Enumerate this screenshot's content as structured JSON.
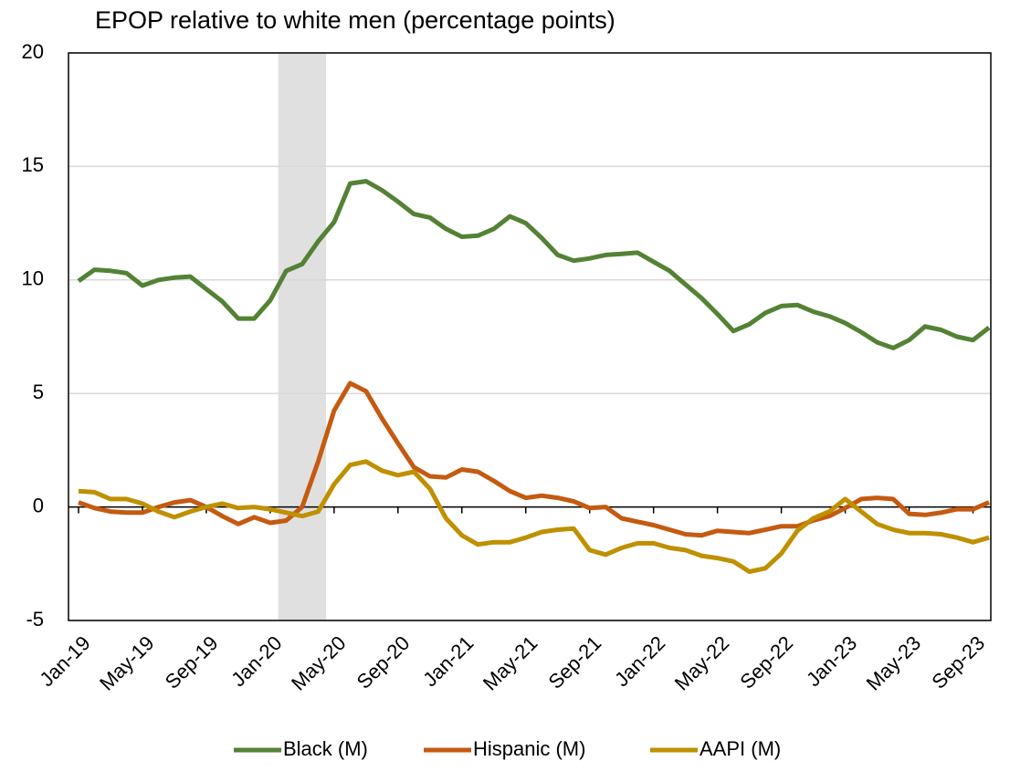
{
  "chart_data": {
    "type": "line",
    "title": "EPOP relative to white men (percentage points)",
    "categories": [
      "Jan-19",
      null,
      null,
      null,
      "May-19",
      null,
      null,
      null,
      "Sep-19",
      null,
      null,
      null,
      "Jan-20",
      null,
      null,
      null,
      "May-20",
      null,
      null,
      null,
      "Sep-20",
      null,
      null,
      null,
      "Jan-21",
      null,
      null,
      null,
      "May-21",
      null,
      null,
      null,
      "Sep-21",
      null,
      null,
      null,
      "Jan-22",
      null,
      null,
      null,
      "May-22",
      null,
      null,
      null,
      "Sep-22",
      null,
      null,
      null,
      "Jan-23",
      null,
      null,
      null,
      "May-23",
      null,
      null,
      null,
      "Sep-23",
      null
    ],
    "series": [
      {
        "name": "Black (M)",
        "color": "#548235",
        "values": [
          9.95,
          10.45,
          10.4,
          10.3,
          9.75,
          10.0,
          10.1,
          10.15,
          9.6,
          9.05,
          8.3,
          8.3,
          9.1,
          10.4,
          10.7,
          11.7,
          12.55,
          14.25,
          14.35,
          13.95,
          13.45,
          12.9,
          12.75,
          12.25,
          11.9,
          11.95,
          12.25,
          12.8,
          12.5,
          11.85,
          11.1,
          10.85,
          10.95,
          11.1,
          11.15,
          11.2,
          10.8,
          10.4,
          9.8,
          9.2,
          8.5,
          7.75,
          8.05,
          8.55,
          8.85,
          8.9,
          8.6,
          8.4,
          8.1,
          7.7,
          7.25,
          7.0,
          7.35,
          7.95,
          7.8,
          7.5,
          7.35,
          7.9
        ]
      },
      {
        "name": "Hispanic (M)",
        "color": "#c55a11",
        "values": [
          0.2,
          -0.05,
          -0.2,
          -0.25,
          -0.25,
          0.0,
          0.2,
          0.3,
          0.0,
          -0.4,
          -0.75,
          -0.45,
          -0.7,
          -0.6,
          0.0,
          2.0,
          4.25,
          5.45,
          5.1,
          3.9,
          2.8,
          1.75,
          1.35,
          1.3,
          1.65,
          1.55,
          1.15,
          0.7,
          0.4,
          0.5,
          0.4,
          0.25,
          -0.05,
          0.0,
          -0.5,
          -0.65,
          -0.8,
          -1.0,
          -1.2,
          -1.25,
          -1.05,
          -1.1,
          -1.15,
          -1.0,
          -0.85,
          -0.85,
          -0.6,
          -0.4,
          -0.05,
          0.35,
          0.4,
          0.35,
          -0.3,
          -0.35,
          -0.25,
          -0.1,
          -0.1,
          0.2
        ]
      },
      {
        "name": "AAPI (M)",
        "color": "#bf9000",
        "values": [
          0.7,
          0.65,
          0.35,
          0.35,
          0.15,
          -0.2,
          -0.45,
          -0.2,
          0.0,
          0.15,
          -0.05,
          0.0,
          -0.1,
          -0.25,
          -0.4,
          -0.2,
          1.0,
          1.85,
          2.0,
          1.6,
          1.4,
          1.55,
          0.8,
          -0.5,
          -1.25,
          -1.65,
          -1.55,
          -1.55,
          -1.35,
          -1.1,
          -1.0,
          -0.95,
          -1.9,
          -2.1,
          -1.8,
          -1.6,
          -1.6,
          -1.8,
          -1.9,
          -2.15,
          -2.25,
          -2.4,
          -2.85,
          -2.7,
          -2.05,
          -1.05,
          -0.5,
          -0.2,
          0.35,
          -0.2,
          -0.75,
          -1.0,
          -1.15,
          -1.15,
          -1.2,
          -1.35,
          -1.55,
          -1.35
        ]
      }
    ],
    "ylim": [
      -5,
      20
    ],
    "yticks": [
      -5,
      0,
      5,
      10,
      15,
      20
    ],
    "grid": true,
    "legend": "bottom"
  }
}
